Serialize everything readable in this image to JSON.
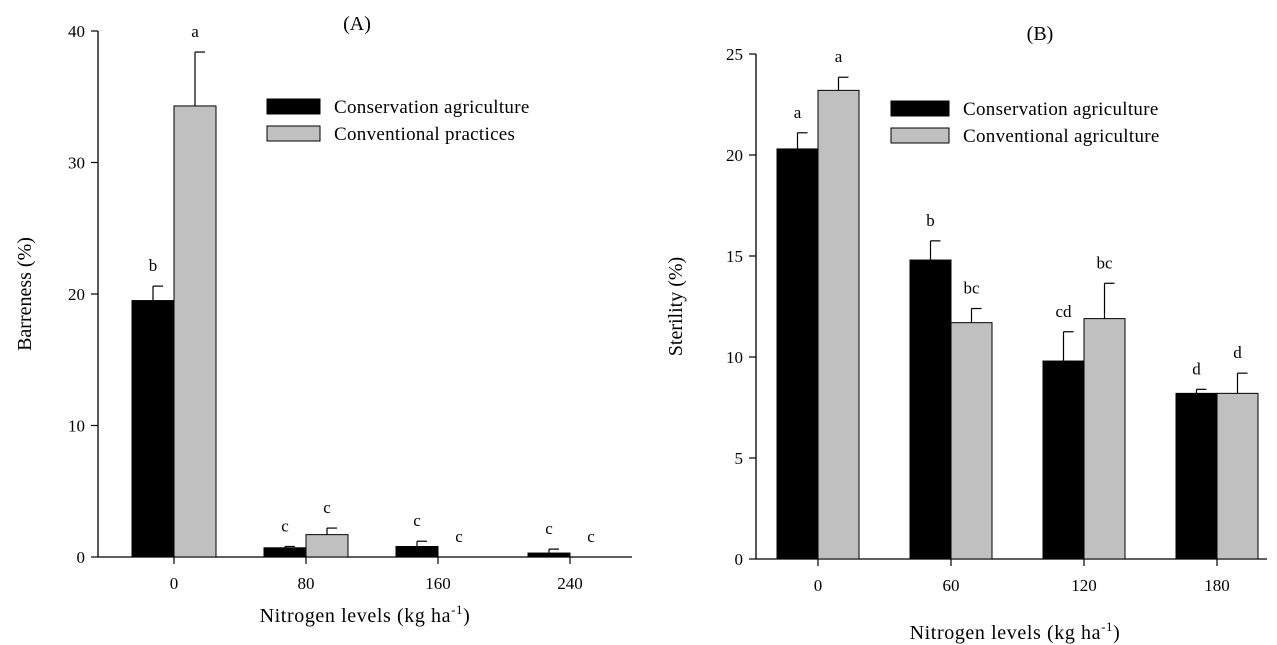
{
  "chart_data": [
    {
      "type": "bar",
      "title": "(A)",
      "xlabel": "Nitrogen levels (kg ha",
      "xlabel_sup": "-1",
      "xlabel_close": ")",
      "ylabel": "Barreness (%)",
      "ylim": [
        0,
        40
      ],
      "yticks": [
        0,
        10,
        20,
        30,
        40
      ],
      "categories": [
        "0",
        "80",
        "160",
        "240"
      ],
      "legend_position": "top-right",
      "series": [
        {
          "name": "Conservation agriculture",
          "color": "#000000",
          "values": [
            19.5,
            0.7,
            0.8,
            0.3
          ],
          "errors": [
            1.1,
            0.1,
            0.4,
            0.3
          ],
          "letters": [
            "b",
            "c",
            "c",
            "c"
          ]
        },
        {
          "name": "Conventional practices",
          "color": "#c0c0c0",
          "values": [
            34.3,
            1.7,
            0,
            0
          ],
          "errors": [
            4.1,
            0.5,
            0,
            0
          ],
          "letters": [
            "a",
            "c",
            "c",
            "c"
          ]
        }
      ]
    },
    {
      "type": "bar",
      "title": "(B)",
      "xlabel": "Nitrogen levels (kg ha",
      "xlabel_sup": "-1",
      "xlabel_close": ")",
      "ylabel": "Sterility (%)",
      "ylim": [
        0,
        25
      ],
      "yticks": [
        0,
        5,
        10,
        15,
        20,
        25
      ],
      "categories": [
        "0",
        "60",
        "120",
        "180"
      ],
      "legend_position": "top-right",
      "series": [
        {
          "name": "Conservation agriculture",
          "color": "#000000",
          "values": [
            20.3,
            14.8,
            9.8,
            8.2
          ],
          "errors": [
            0.8,
            0.95,
            1.45,
            0.2
          ],
          "letters": [
            "a",
            "b",
            "cd",
            "d"
          ]
        },
        {
          "name": "Conventional agriculture",
          "color": "#c0c0c0",
          "values": [
            23.2,
            11.7,
            11.9,
            8.2
          ],
          "errors": [
            0.65,
            0.7,
            1.75,
            1.0
          ],
          "letters": [
            "a",
            "bc",
            "bc",
            "d"
          ]
        }
      ]
    }
  ]
}
